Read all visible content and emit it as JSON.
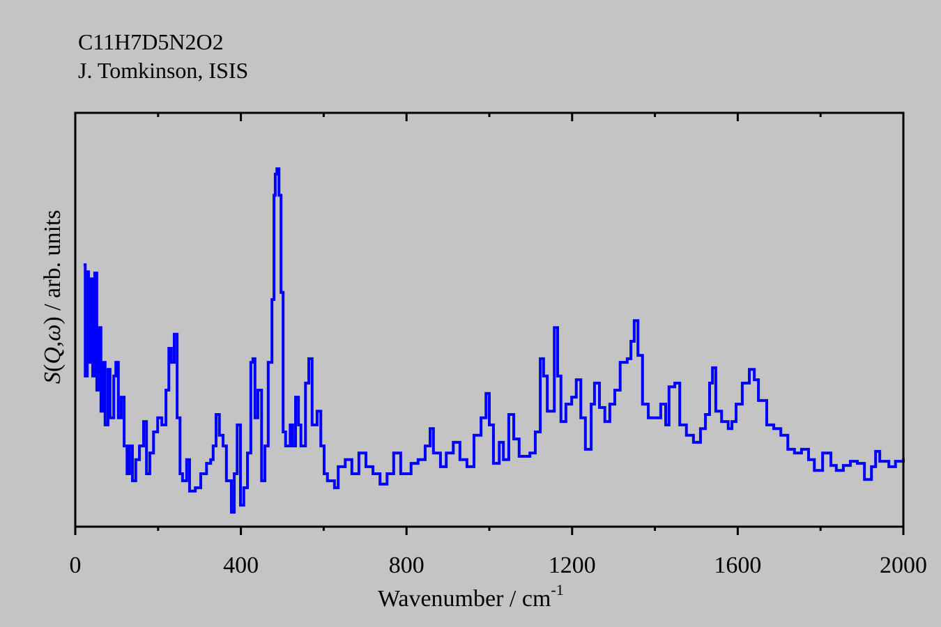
{
  "chart_data": {
    "type": "line",
    "title_lines": [
      "C11H7D5N2O2",
      "J. Tomkinson, ISIS"
    ],
    "xlabel": "Wavenumber / cm",
    "xlabel_superscript": "-1",
    "ylabel_parts": {
      "s": "S",
      "open": "(",
      "q": "Q",
      "comma": ",",
      "omega": "ω",
      "rest": ") / arb. units"
    },
    "xlim": [
      0,
      2000
    ],
    "ylim": [
      0,
      100
    ],
    "xticks_major": [
      0,
      400,
      800,
      1200,
      1600,
      2000
    ],
    "xtick_labels": [
      "0",
      "400",
      "800",
      "1200",
      "1600",
      "2000"
    ],
    "xticks_minor": [
      200,
      600,
      1000,
      1400,
      1800
    ],
    "yticks": [],
    "grid": false,
    "legend": "none",
    "series": [
      {
        "name": "S(Q,ω)",
        "color": "#0000ff",
        "step": true,
        "x": [
          20,
          24,
          29,
          32,
          37,
          42,
          47,
          52,
          57,
          62,
          67,
          72,
          79,
          84,
          93,
          98,
          104,
          111,
          118,
          125,
          131,
          138,
          146,
          155,
          165,
          172,
          180,
          189,
          199,
          209,
          219,
          226,
          232,
          239,
          246,
          253,
          259,
          269,
          276,
          290,
          303,
          317,
          327,
          333,
          340,
          348,
          357,
          365,
          377,
          384,
          391,
          399,
          407,
          416,
          424,
          429,
          434,
          441,
          450,
          458,
          466,
          475,
          480,
          483,
          487,
          492,
          497,
          502,
          508,
          519,
          525,
          532,
          539,
          545,
          556,
          564,
          572,
          584,
          593,
          601,
          609,
          626,
          635,
          652,
          668,
          685,
          702,
          719,
          736,
          753,
          769,
          786,
          811,
          828,
          845,
          857,
          865,
          882,
          896,
          913,
          929,
          946,
          963,
          980,
          992,
          1000,
          1010,
          1024,
          1034,
          1047,
          1059,
          1072,
          1098,
          1111,
          1123,
          1131,
          1140,
          1157,
          1165,
          1173,
          1185,
          1199,
          1210,
          1221,
          1232,
          1246,
          1254,
          1266,
          1279,
          1291,
          1303,
          1316,
          1333,
          1342,
          1350,
          1359,
          1370,
          1384,
          1401,
          1414,
          1426,
          1434,
          1448,
          1460,
          1476,
          1493,
          1510,
          1522,
          1532,
          1539,
          1547,
          1561,
          1577,
          1586,
          1596,
          1611,
          1628,
          1640,
          1650,
          1670,
          1687,
          1704,
          1721,
          1737,
          1754,
          1771,
          1785,
          1805,
          1825,
          1838,
          1855,
          1872,
          1889,
          1906,
          1923,
          1933,
          1943,
          1965,
          1981,
          2000
        ],
        "y": [
          63.3,
          36.4,
          61.6,
          39.7,
          59.9,
          36.4,
          61.3,
          33.0,
          48.1,
          27.9,
          39.7,
          24.6,
          38.0,
          26.3,
          36.4,
          39.7,
          26.3,
          31.3,
          19.5,
          12.8,
          19.5,
          11.1,
          16.2,
          19.5,
          25.4,
          12.8,
          17.8,
          22.9,
          26.3,
          24.6,
          33.0,
          43.1,
          39.7,
          46.5,
          26.3,
          12.8,
          11.1,
          16.2,
          8.6,
          9.4,
          12.8,
          15.3,
          16.2,
          19.5,
          27.1,
          22.1,
          19.5,
          11.1,
          3.5,
          12.8,
          24.6,
          5.2,
          9.4,
          17.8,
          39.7,
          40.6,
          26.3,
          33.0,
          11.1,
          19.5,
          39.7,
          54.9,
          80.1,
          85.2,
          86.5,
          80.1,
          56.6,
          22.9,
          19.5,
          24.6,
          19.5,
          31.3,
          24.6,
          19.5,
          34.7,
          40.6,
          24.6,
          27.9,
          19.5,
          12.8,
          11.1,
          9.4,
          14.5,
          16.2,
          12.8,
          17.8,
          14.5,
          12.8,
          10.3,
          12.8,
          17.8,
          12.8,
          15.3,
          16.2,
          19.5,
          23.7,
          17.8,
          14.5,
          17.8,
          20.4,
          16.2,
          14.5,
          22.1,
          26.3,
          32.2,
          24.6,
          15.3,
          20.4,
          16.2,
          27.1,
          21.2,
          17.0,
          17.8,
          22.9,
          40.6,
          36.4,
          27.9,
          48.1,
          36.4,
          25.4,
          29.6,
          31.3,
          35.5,
          26.3,
          18.7,
          29.6,
          34.7,
          28.8,
          25.4,
          29.6,
          33.0,
          39.7,
          40.6,
          44.8,
          49.8,
          41.4,
          29.6,
          26.3,
          26.3,
          29.6,
          24.6,
          33.8,
          34.7,
          24.6,
          22.1,
          20.4,
          23.7,
          27.1,
          34.7,
          38.4,
          27.9,
          25.4,
          23.7,
          25.4,
          29.6,
          34.7,
          38.0,
          35.5,
          30.5,
          24.6,
          23.7,
          22.1,
          18.7,
          17.8,
          18.7,
          16.2,
          13.6,
          17.8,
          14.8,
          13.6,
          14.8,
          15.8,
          15.3,
          11.4,
          14.5,
          18.2,
          15.8,
          14.5,
          15.8,
          16.5
        ]
      }
    ]
  }
}
